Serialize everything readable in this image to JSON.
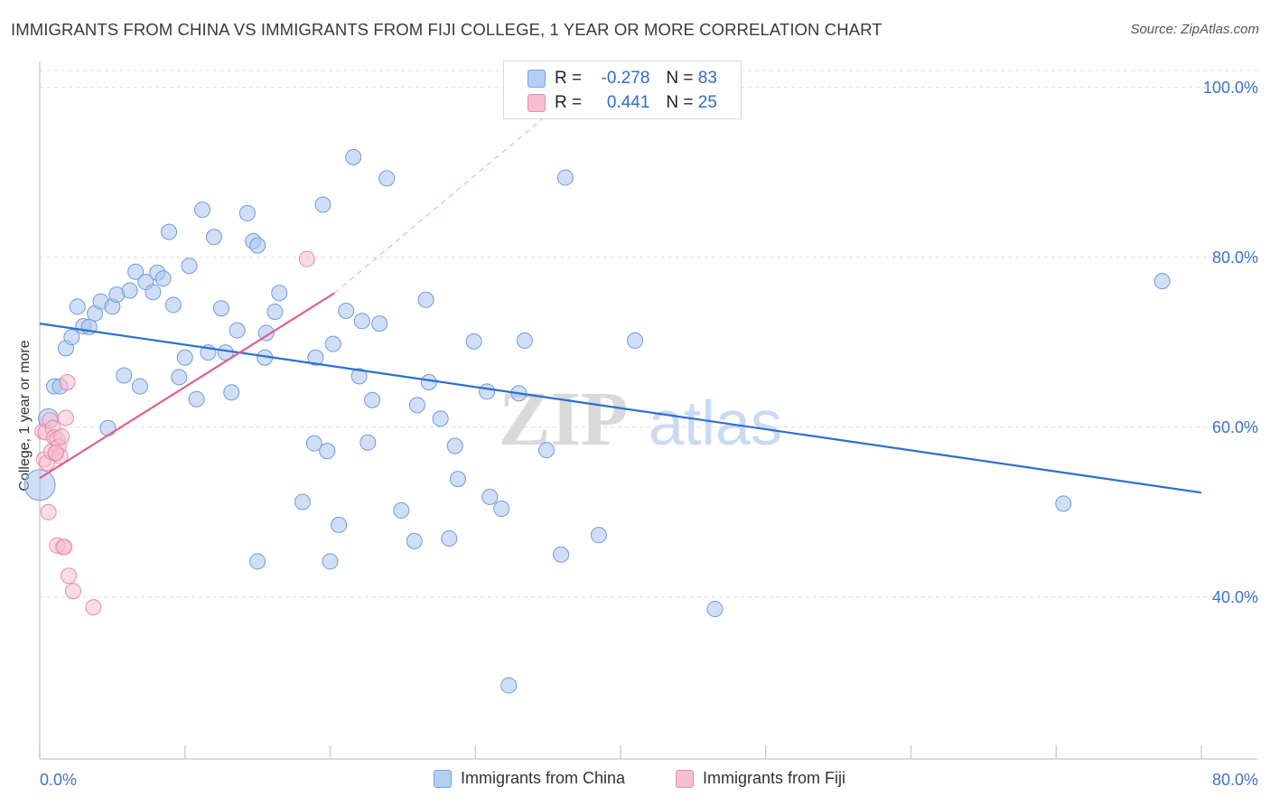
{
  "title": "IMMIGRANTS FROM CHINA VS IMMIGRANTS FROM FIJI COLLEGE, 1 YEAR OR MORE CORRELATION CHART",
  "source": "Source: ZipAtlas.com",
  "watermark": {
    "part1": "ZIP",
    "part2": "atlas"
  },
  "legend": {
    "r_label": "R =",
    "n_label": "N =",
    "rows": [
      {
        "r": "-0.278",
        "n": "83",
        "color": "#b3cdf3",
        "border": "#7aa3e0"
      },
      {
        "r": "0.441",
        "n": "25",
        "color": "#f6bfd0",
        "border": "#e98bab"
      }
    ]
  },
  "chart_data": {
    "type": "scatter",
    "xlabel": "",
    "ylabel": "College, 1 year or more",
    "xlim": [
      0,
      80
    ],
    "ylim": [
      22,
      102
    ],
    "x_tick_labels": [
      {
        "value": 0,
        "label": "0.0%"
      },
      {
        "value": 80,
        "label": "80.0%"
      }
    ],
    "y_tick_labels": [
      {
        "value": 100,
        "label": "100.0%"
      },
      {
        "value": 80,
        "label": "80.0%"
      },
      {
        "value": 60,
        "label": "60.0%"
      },
      {
        "value": 40,
        "label": "40.0%"
      }
    ],
    "grid": "horizontal dashed",
    "series": [
      {
        "name": "Immigrants from China",
        "color": "#a9c5ef",
        "stroke": "#6f9bdc",
        "trend_color": "#2a6fd1",
        "trend": {
          "x1": 0,
          "y1": 72.2,
          "x2": 80,
          "y2": 52.3
        },
        "points": [
          [
            0.0,
            53.2,
            "big"
          ],
          [
            0.6,
            61.0,
            "mid"
          ],
          [
            1.0,
            64.8
          ],
          [
            1.4,
            64.8
          ],
          [
            1.8,
            69.3
          ],
          [
            2.2,
            70.6
          ],
          [
            2.6,
            74.2
          ],
          [
            3.0,
            71.9
          ],
          [
            3.4,
            71.8
          ],
          [
            3.8,
            73.4
          ],
          [
            4.2,
            74.8
          ],
          [
            4.7,
            59.9
          ],
          [
            5.0,
            74.2
          ],
          [
            5.3,
            75.6
          ],
          [
            5.8,
            66.1
          ],
          [
            6.2,
            76.1
          ],
          [
            6.6,
            78.3
          ],
          [
            6.9,
            64.8
          ],
          [
            7.3,
            77.1
          ],
          [
            7.8,
            75.9
          ],
          [
            8.1,
            78.2
          ],
          [
            8.5,
            77.5
          ],
          [
            8.9,
            83.0
          ],
          [
            9.2,
            74.4
          ],
          [
            9.6,
            65.9
          ],
          [
            10.0,
            68.2
          ],
          [
            10.3,
            79.0
          ],
          [
            10.8,
            63.3
          ],
          [
            11.2,
            85.6
          ],
          [
            11.6,
            68.8
          ],
          [
            12.0,
            82.4
          ],
          [
            12.5,
            74.0
          ],
          [
            12.8,
            68.8
          ],
          [
            13.2,
            64.1
          ],
          [
            13.6,
            71.4
          ],
          [
            14.3,
            85.2
          ],
          [
            14.7,
            81.9
          ],
          [
            15.0,
            81.4
          ],
          [
            15.5,
            68.2
          ],
          [
            15.6,
            71.1
          ],
          [
            16.2,
            73.6
          ],
          [
            16.5,
            75.8
          ],
          [
            18.1,
            51.2
          ],
          [
            18.9,
            58.1
          ],
          [
            19.0,
            68.2
          ],
          [
            19.5,
            86.2
          ],
          [
            19.8,
            57.2
          ],
          [
            20.2,
            69.8
          ],
          [
            20.6,
            48.5
          ],
          [
            21.1,
            73.7
          ],
          [
            21.6,
            91.8
          ],
          [
            22.0,
            66.0
          ],
          [
            22.2,
            72.5
          ],
          [
            22.6,
            58.2
          ],
          [
            22.9,
            63.2
          ],
          [
            23.4,
            72.2
          ],
          [
            23.9,
            89.3
          ],
          [
            24.9,
            50.2
          ],
          [
            25.8,
            46.6
          ],
          [
            26.0,
            62.6
          ],
          [
            26.6,
            75.0
          ],
          [
            26.8,
            65.3
          ],
          [
            27.6,
            61.0
          ],
          [
            28.2,
            46.9
          ],
          [
            28.6,
            57.8
          ],
          [
            28.8,
            53.9
          ],
          [
            29.9,
            70.1
          ],
          [
            30.8,
            64.2
          ],
          [
            31.0,
            51.8
          ],
          [
            31.8,
            50.4
          ],
          [
            32.3,
            29.6
          ],
          [
            33.0,
            64.0
          ],
          [
            33.4,
            70.2
          ],
          [
            34.9,
            57.3
          ],
          [
            35.9,
            45.0
          ],
          [
            36.2,
            89.4
          ],
          [
            38.5,
            47.3
          ],
          [
            41.0,
            70.2
          ],
          [
            46.5,
            38.6
          ],
          [
            70.5,
            51.0
          ],
          [
            77.3,
            77.2
          ],
          [
            15.0,
            44.2
          ],
          [
            20.0,
            44.2
          ]
        ]
      },
      {
        "name": "Immigrants from Fiji",
        "color": "#f6bfd0",
        "stroke": "#e88aab",
        "trend_color": "#e0608c",
        "trend": {
          "x1": 0,
          "y1": 54.0,
          "x2": 20.3,
          "y2": 75.8
        },
        "trend_ext": {
          "x1": 20.3,
          "y1": 75.8,
          "x2": 36.5,
          "y2": 99.0
        },
        "points": [
          [
            0.2,
            59.5
          ],
          [
            0.3,
            56.2
          ],
          [
            0.4,
            59.4
          ],
          [
            0.5,
            55.8
          ],
          [
            0.6,
            50.0
          ],
          [
            0.7,
            60.8
          ],
          [
            0.8,
            57.1
          ],
          [
            0.9,
            59.9
          ],
          [
            1.0,
            58.8
          ],
          [
            1.1,
            56.9
          ],
          [
            1.2,
            58.6
          ],
          [
            1.3,
            57.7
          ],
          [
            1.4,
            56.6
          ],
          [
            1.5,
            58.9
          ],
          [
            1.6,
            45.9
          ],
          [
            1.2,
            46.1
          ],
          [
            1.8,
            61.1
          ],
          [
            1.9,
            65.3
          ],
          [
            2.0,
            42.5
          ],
          [
            2.3,
            40.7
          ],
          [
            3.7,
            38.8
          ],
          [
            18.4,
            79.8
          ],
          [
            34.8,
            97.2
          ],
          [
            1.7,
            45.9
          ],
          [
            1.1,
            57.0
          ]
        ]
      }
    ]
  },
  "bottom_legend": [
    {
      "label": "Immigrants from China",
      "color": "#b3cdf3",
      "border": "#7aa3e0"
    },
    {
      "label": "Immigrants from Fiji",
      "color": "#f6bfd0",
      "border": "#e98bab"
    }
  ]
}
